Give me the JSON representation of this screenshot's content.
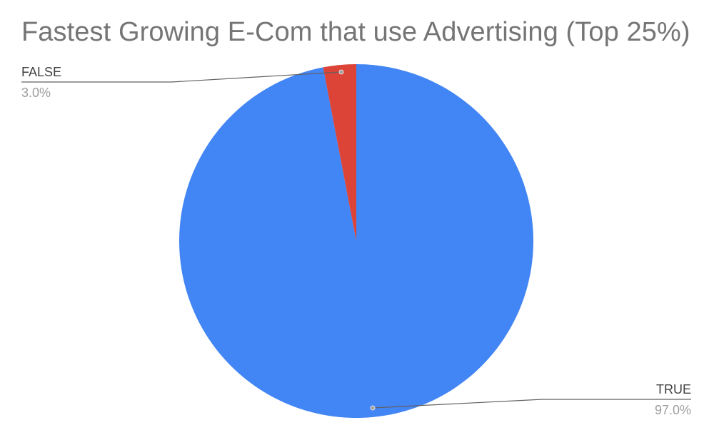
{
  "chart_data": {
    "type": "pie",
    "title": "Fastest Growing E-Com that use Advertising (Top 25%)",
    "slices": [
      {
        "label": "TRUE",
        "percent_label": "97.0%",
        "value": 97.0,
        "color": "#4285F4"
      },
      {
        "label": "FALSE",
        "percent_label": "3.0%",
        "value": 3.0,
        "color": "#DB4437"
      }
    ],
    "label_color": "#424242",
    "percent_color": "#9E9E9E",
    "leader_color": "#616161"
  }
}
